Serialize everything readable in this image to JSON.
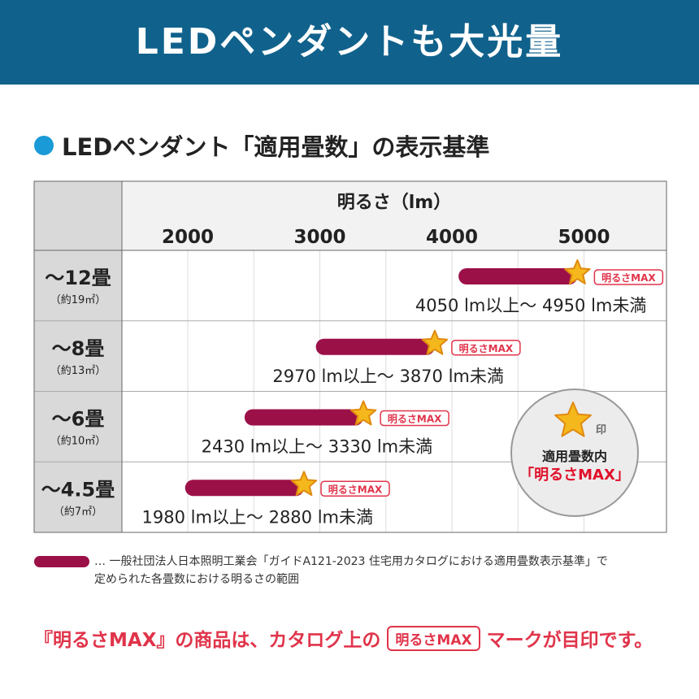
{
  "banner": {
    "title": "LEDペンダントも大光量"
  },
  "subtitle": "LEDペンダント「適用畳数」の表示基準",
  "colors": {
    "banner": "#10628c",
    "bar": "#9c1048",
    "star": "#f5b81c",
    "badge": "#e0344a"
  },
  "chart_data": {
    "type": "bar",
    "orientation": "horizontal-range",
    "title": "明るさ（lm）",
    "xticks": [
      "2000",
      "3000",
      "4000",
      "5000"
    ],
    "xlim": [
      1500,
      5500
    ],
    "grid": true,
    "categories": [
      {
        "label": "～12畳",
        "sub": "（約19㎡）"
      },
      {
        "label": "～8畳",
        "sub": "（約13㎡）"
      },
      {
        "label": "～6畳",
        "sub": "（約10㎡）"
      },
      {
        "label": "～4.5畳",
        "sub": "（約7㎡）"
      }
    ],
    "ranges": [
      [
        4050,
        4950
      ],
      [
        2970,
        3870
      ],
      [
        2430,
        3330
      ],
      [
        1980,
        2880
      ]
    ],
    "range_labels": [
      "4050 lm以上～ 4950 lm未満",
      "2970 lm以上～ 3870 lm未満",
      "2430 lm以上～ 3330 lm未満",
      "1980 lm以上～ 2880 lm未満"
    ],
    "badge": "明るさMAX"
  },
  "circle": {
    "mark": "印",
    "line1": "適用畳数内",
    "line2": "「明るさMAX」"
  },
  "note": {
    "line1": "… 一般社団法人日本照明工業会「ガイドA121-2023 住宅用カタログにおける適用畳数表示基準」で",
    "line2": "定められた各畳数における明るさの範囲"
  },
  "footer": {
    "pre": "『明るさMAX』の商品は、カタログ上の",
    "badge": "明るさMAX",
    "post": "マークが目印です。"
  }
}
